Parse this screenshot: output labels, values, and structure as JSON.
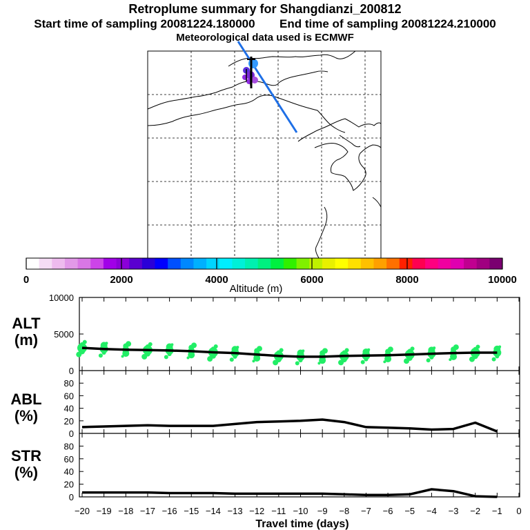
{
  "header": {
    "title": "Retroplume summary for Shangdianzi_200812",
    "start_label": "Start time of sampling 20081224.180000",
    "end_label": "End time of sampling 20081224.210000",
    "met_label": "Meteorological data used is ECMWF"
  },
  "colorbar": {
    "label": "Altitude (m)",
    "ticks": [
      "0",
      "2000",
      "4000",
      "6000",
      "8000",
      "10000"
    ],
    "colors": [
      "#ffffff",
      "#f5dcf5",
      "#eebbee",
      "#e299e8",
      "#d977e5",
      "#cc44e8",
      "#a100e8",
      "#8b00d8",
      "#5a00d0",
      "#2a00d8",
      "#0000ff",
      "#0050ff",
      "#0088ff",
      "#00b0ff",
      "#00d4ff",
      "#00eeff",
      "#00f0d8",
      "#00f0b0",
      "#00f080",
      "#00f040",
      "#30f000",
      "#80f000",
      "#c0f000",
      "#e8f000",
      "#ffff00",
      "#ffe000",
      "#ffc000",
      "#ffa000",
      "#ff7000",
      "#ff2000",
      "#ff0050",
      "#ff0080",
      "#f000a0",
      "#e000b0",
      "#c00090",
      "#a00080",
      "#7a0070"
    ]
  },
  "panels": {
    "alt": {
      "label_top": "ALT",
      "label_bottom": "(m)",
      "yticks": [
        "10000",
        "5000",
        "0"
      ]
    },
    "abl": {
      "label_top": "ABL",
      "label_bottom": "(%)",
      "yticks": [
        "80",
        "60",
        "40",
        "20",
        "0"
      ]
    },
    "str": {
      "label_top": "STR",
      "label_bottom": "(%)",
      "yticks": [
        "80",
        "60",
        "40",
        "20",
        "0"
      ]
    }
  },
  "xaxis": {
    "label": "Travel time (days)",
    "ticks": [
      "-20",
      "-19",
      "-18",
      "-17",
      "-16",
      "-15",
      "-14",
      "-13",
      "-12",
      "-11",
      "-10",
      "-9",
      "-8",
      "-7",
      "-6",
      "-5",
      "-4",
      "-3",
      "-2",
      "-1",
      "0"
    ]
  },
  "chart_data": {
    "type": "line",
    "title": "Retroplume summary for Shangdianzi_200812",
    "xlabel": "Travel time (days)",
    "x": [
      -20,
      -19,
      -18,
      -17,
      -16,
      -15,
      -14,
      -13,
      -12,
      -11,
      -10,
      -9,
      -8,
      -7,
      -6,
      -5,
      -4,
      -3,
      -2,
      -1
    ],
    "xlim": [
      -20,
      0
    ],
    "series": [
      {
        "name": "ALT (m)",
        "ylim": [
          0,
          10000
        ],
        "color": "#000000",
        "values": [
          3100,
          2950,
          2850,
          2800,
          2750,
          2650,
          2500,
          2400,
          2200,
          2000,
          1900,
          1900,
          2000,
          2050,
          2100,
          2200,
          2300,
          2400,
          2450,
          2450
        ]
      },
      {
        "name": "ABL (%)",
        "ylim": [
          0,
          100
        ],
        "color": "#000000",
        "values": [
          10,
          11,
          12,
          13,
          12,
          12,
          12,
          15,
          18,
          19,
          20,
          22,
          18,
          10,
          9,
          8,
          6,
          7,
          17,
          3
        ]
      },
      {
        "name": "STR (%)",
        "ylim": [
          0,
          100
        ],
        "color": "#000000",
        "values": [
          7,
          7,
          7,
          7,
          6,
          6,
          6,
          5,
          5,
          5,
          5,
          5,
          4,
          3,
          3,
          4,
          12,
          9,
          1,
          0
        ]
      }
    ],
    "alt_spread_color": "#22ee66",
    "map": {
      "release_marker_color": "#000000",
      "plume_color": "#1e6fe6",
      "cluster_colors": [
        "#3399ff",
        "#5b2fe0",
        "#7a2ad8",
        "#a84ee0",
        "#8e2be2"
      ]
    }
  }
}
